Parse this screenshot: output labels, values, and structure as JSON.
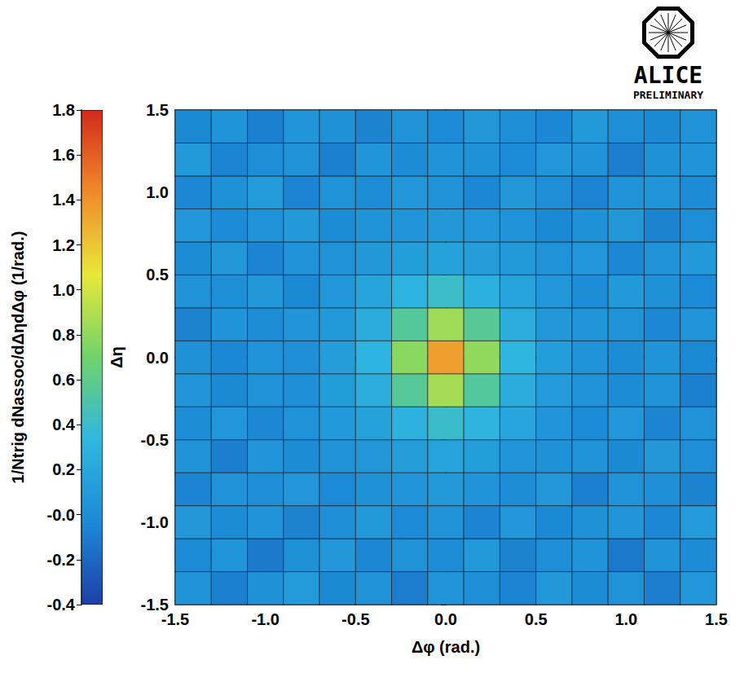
{
  "chart_data": {
    "type": "heatmap",
    "x_label": "Δφ (rad.)",
    "y_label": "Δη",
    "z_label": "1/Ntrig dNassoc/dΔηdΔφ (1/rad.)",
    "annotations": [
      "ALICE",
      "PRELIMINARY"
    ],
    "grid": false,
    "xlim": [
      -1.5,
      1.5
    ],
    "xticks": [
      -1.5,
      {
        "value": -1,
        "label": "-1.0"
      },
      -0.5,
      {
        "value": 0,
        "label": "0.0"
      },
      0.5,
      {
        "value": 1,
        "label": "1.0"
      },
      1.5
    ],
    "ylim": [
      -1.5,
      1.5
    ],
    "yticks": [
      -1.5,
      {
        "value": -1,
        "label": "-1.0"
      },
      -0.5,
      {
        "value": 0,
        "label": "0.0"
      },
      0.5,
      {
        "value": 1,
        "label": "1.0"
      },
      1.5
    ],
    "zlim": [
      -0.4,
      1.8
    ],
    "zticks": [
      -0.4,
      -0.2,
      {
        "value": 0,
        "label": "-0.0"
      },
      0.2,
      0.4,
      0.6,
      0.8,
      {
        "value": 1,
        "label": "1.0"
      },
      1.2,
      1.4,
      1.6,
      1.8
    ],
    "x_bins": [
      -1.5,
      -1.3,
      -1.1,
      -0.9,
      -0.7,
      -0.5,
      -0.3,
      -0.1,
      0.1,
      0.3,
      0.5,
      0.7,
      0.9,
      1.1,
      1.3,
      1.5
    ],
    "y_bins": [
      -1.5,
      -1.3,
      -1.1,
      -0.9,
      -0.7,
      -0.5,
      -0.3,
      -0.1,
      0.1,
      0.3,
      0.5,
      0.7,
      0.9,
      1.1,
      1.3,
      1.5
    ],
    "z": [
      [
        0.05,
        -0.08,
        0.02,
        0.1,
        -0.04,
        0.03,
        -0.1,
        0.06,
        0.01,
        -0.06,
        0.08,
        -0.02,
        0.04,
        -0.09,
        0.07
      ],
      [
        -0.03,
        0.06,
        -0.11,
        0.02,
        0.08,
        -0.05,
        0.04,
        -0.01,
        0.09,
        -0.07,
        0.0,
        0.05,
        -0.12,
        0.03,
        -0.02
      ],
      [
        0.08,
        -0.02,
        0.05,
        -0.07,
        0.01,
        0.09,
        -0.03,
        0.04,
        -0.06,
        0.07,
        -0.04,
        0.02,
        0.06,
        -0.05,
        0.1
      ],
      [
        -0.06,
        0.04,
        0.0,
        0.07,
        -0.03,
        0.02,
        0.06,
        0.09,
        0.05,
        -0.01,
        0.08,
        -0.08,
        0.03,
        0.01,
        -0.07
      ],
      [
        0.03,
        -0.09,
        0.06,
        -0.02,
        0.05,
        0.07,
        0.12,
        0.17,
        0.13,
        0.06,
        0.02,
        0.05,
        -0.04,
        0.08,
        0.01
      ],
      [
        -0.01,
        0.07,
        -0.05,
        0.04,
        0.09,
        0.16,
        0.29,
        0.4,
        0.31,
        0.19,
        0.06,
        -0.03,
        0.07,
        -0.06,
        0.04
      ],
      [
        0.06,
        -0.04,
        0.03,
        0.0,
        0.11,
        0.26,
        0.56,
        0.86,
        0.54,
        0.24,
        0.1,
        0.04,
        -0.02,
        0.05,
        -0.08
      ],
      [
        0.02,
        -0.05,
        0.04,
        0.01,
        0.12,
        0.3,
        0.78,
        1.35,
        0.8,
        0.32,
        0.13,
        0.03,
        -0.02,
        0.05,
        -0.04
      ],
      [
        -0.07,
        0.05,
        -0.01,
        0.06,
        0.09,
        0.24,
        0.55,
        0.84,
        0.57,
        0.26,
        0.08,
        0.06,
        0.03,
        -0.05,
        0.06
      ],
      [
        0.04,
        0.01,
        0.08,
        -0.04,
        0.07,
        0.18,
        0.3,
        0.41,
        0.28,
        0.17,
        0.07,
        -0.01,
        0.09,
        0.02,
        -0.03
      ],
      [
        -0.02,
        0.08,
        -0.06,
        0.05,
        0.03,
        0.08,
        0.13,
        0.16,
        0.12,
        0.09,
        0.04,
        0.07,
        -0.05,
        0.04,
        0.09
      ],
      [
        0.07,
        -0.03,
        0.04,
        0.09,
        -0.02,
        0.05,
        0.06,
        0.08,
        0.07,
        0.03,
        -0.04,
        0.02,
        0.08,
        -0.07,
        0.01
      ],
      [
        -0.05,
        0.02,
        0.1,
        -0.06,
        0.04,
        -0.01,
        0.07,
        0.03,
        -0.05,
        0.08,
        0.01,
        -0.06,
        0.04,
        0.06,
        -0.02
      ],
      [
        0.09,
        -0.06,
        0.01,
        0.03,
        -0.08,
        0.06,
        -0.02,
        0.05,
        0.02,
        -0.03,
        0.07,
        0.04,
        -0.09,
        0.02,
        0.05
      ],
      [
        -0.04,
        0.05,
        -0.08,
        0.06,
        0.02,
        -0.07,
        0.04,
        -0.03,
        0.08,
        0.0,
        -0.05,
        0.09,
        0.01,
        -0.04,
        0.03
      ]
    ]
  }
}
